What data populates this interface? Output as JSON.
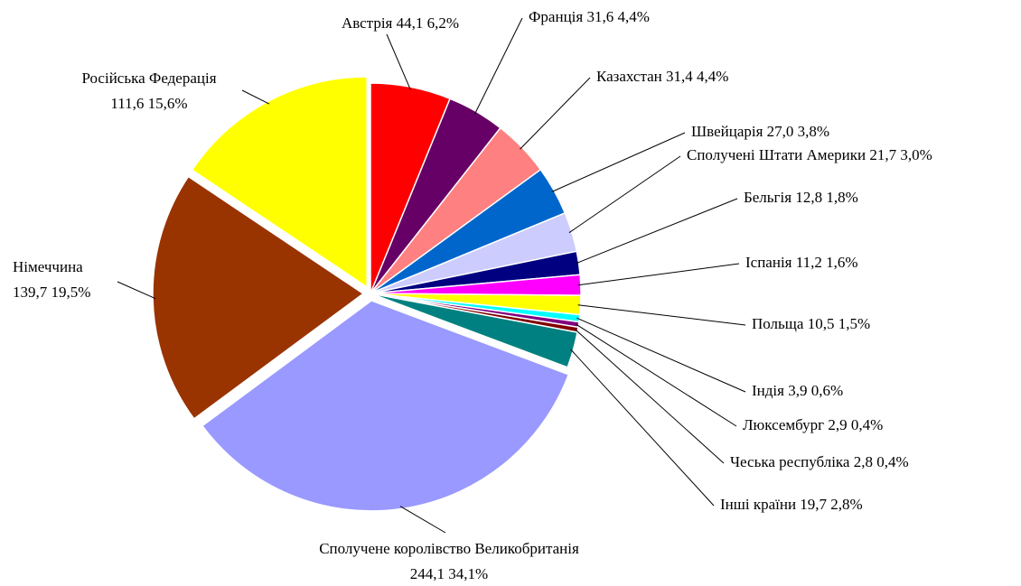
{
  "chart_data": {
    "type": "pie",
    "categories": [
      "Австрія",
      "Франція",
      "Казахстан",
      "Швейцарія",
      "Сполучені Штати Америки",
      "Бельгія",
      "Іспанія",
      "Польща",
      "Індія",
      "Люксембург",
      "Чеська республіка",
      "Інші країни",
      "Сполучене королівство Великобританія",
      "Німеччина",
      "Російська Федерація"
    ],
    "values": [
      44.1,
      31.6,
      31.4,
      27.0,
      21.7,
      12.8,
      11.2,
      10.5,
      3.9,
      2.9,
      2.8,
      19.7,
      244.1,
      139.7,
      111.6
    ],
    "value_labels": [
      "44,1",
      "31,6",
      "31,4",
      "27,0",
      "21,7",
      "12,8",
      "11,2",
      "10,5",
      "3,9",
      "2,9",
      "2,8",
      "19,7",
      "244,1",
      "139,7",
      "111,6"
    ],
    "percents": [
      6.2,
      4.4,
      4.4,
      3.8,
      3.0,
      1.8,
      1.6,
      1.5,
      0.6,
      0.4,
      0.4,
      2.8,
      34.1,
      19.5,
      15.6
    ],
    "percent_labels": [
      "6,2%",
      "4,4%",
      "4,4%",
      "3,8%",
      "3,0%",
      "1,8%",
      "1,6%",
      "1,5%",
      "0,6%",
      "0,4%",
      "0,4%",
      "2,8%",
      "34,1%",
      "19,5%",
      "15,6%"
    ],
    "colors": [
      "#ff0000",
      "#660066",
      "#ff8080",
      "#0066cc",
      "#ccccff",
      "#000080",
      "#ff00ff",
      "#ffff00",
      "#00ffff",
      "#800080",
      "#800000",
      "#008080",
      "#9999ff",
      "#993300",
      "#ffff00"
    ]
  }
}
